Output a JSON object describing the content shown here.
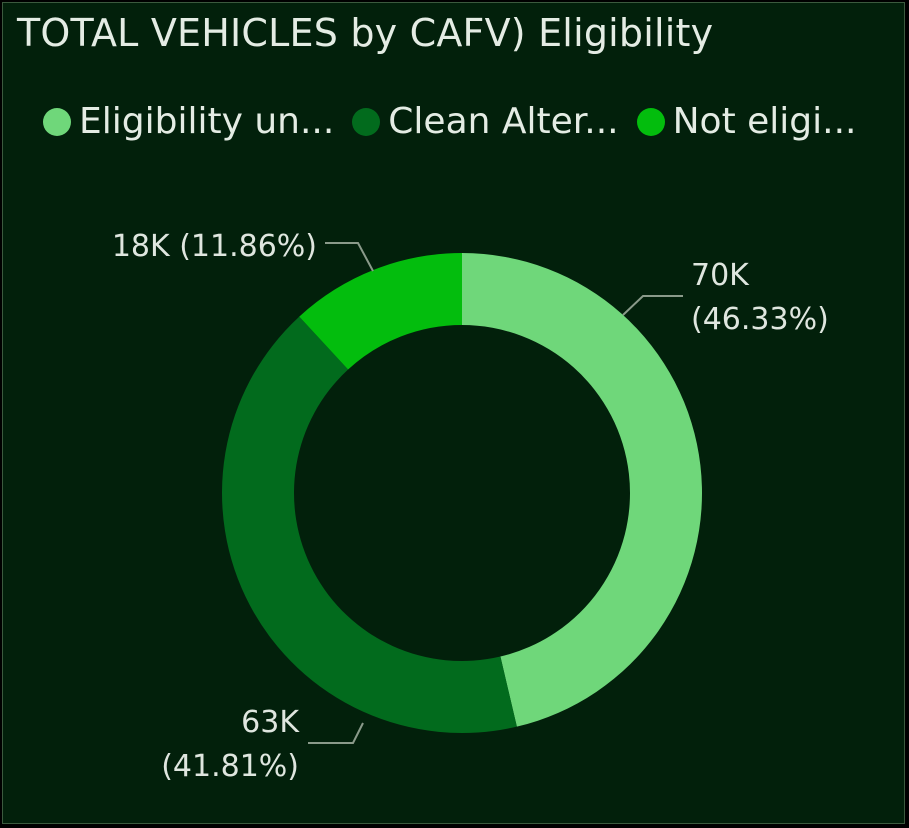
{
  "chart_data": {
    "type": "pie",
    "variant": "donut",
    "title": "TOTAL VEHICLES by CAFV) Eligibility",
    "legend_position": "top",
    "series": [
      {
        "name": "Eligibility un...",
        "value": 70,
        "percent": 46.33,
        "color": "#6fd77a",
        "label_value": "70K",
        "label_percent": "(46.33%)"
      },
      {
        "name": "Clean Alter...",
        "value": 63,
        "percent": 41.81,
        "color": "#026b1d",
        "label_value": "63K",
        "label_percent": "(41.81%)"
      },
      {
        "name": "Not eligi...",
        "value": 18,
        "percent": 11.86,
        "color": "#03bd0d",
        "label_value": "18K (11.86%)",
        "label_percent": ""
      }
    ]
  }
}
